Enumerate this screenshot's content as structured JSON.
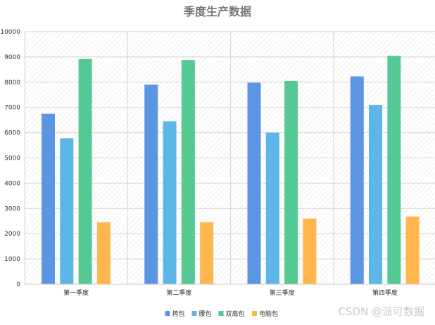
{
  "chart_data": {
    "type": "bar",
    "title": "季度生产数据",
    "categories": [
      "第一季度",
      "第二季度",
      "第三季度",
      "第四季度"
    ],
    "series": [
      {
        "name": "挎包",
        "color": "#5b96e5",
        "values": [
          6750,
          7900,
          7980,
          8230
        ]
      },
      {
        "name": "腰包",
        "color": "#5cb6e6",
        "values": [
          5780,
          6450,
          6000,
          7100
        ]
      },
      {
        "name": "双肩包",
        "color": "#55c993",
        "values": [
          8920,
          8880,
          8050,
          9040
        ]
      },
      {
        "name": "电脑包",
        "color": "#ffb64d",
        "values": [
          2450,
          2450,
          2600,
          2680
        ]
      }
    ],
    "ylim": [
      0,
      10000
    ],
    "yticks": [
      0,
      1000,
      2000,
      3000,
      4000,
      5000,
      6000,
      7000,
      8000,
      9000,
      10000
    ],
    "grid": true,
    "legend_position": "bottom-center"
  },
  "watermark": "CSDN @派可数据"
}
